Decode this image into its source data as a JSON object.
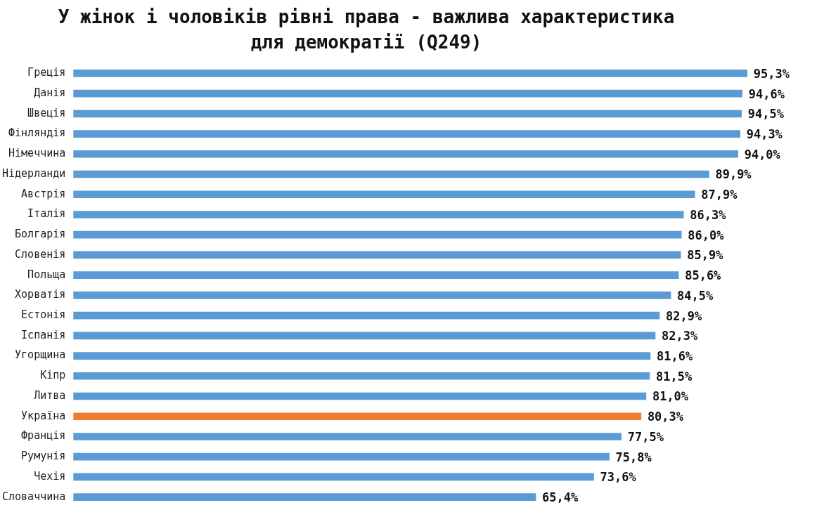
{
  "chart_data": {
    "type": "bar",
    "orientation": "horizontal",
    "title": "У жінок і чоловіків рівні права - важлива характеристика для демократії (Q249)",
    "categories": [
      "Греція",
      "Данія",
      "Швеція",
      "Фінляндія",
      "Німеччина",
      "Нідерланди",
      "Австрія",
      "Італія",
      "Болгарія",
      "Словенія",
      "Польща",
      "Хорватія",
      "Естонія",
      "Іспанія",
      "Угорщина",
      "Кіпр",
      "Литва",
      "Україна",
      "Франція",
      "Румунія",
      "Чехія",
      "Словаччина"
    ],
    "values": [
      95.3,
      94.6,
      94.5,
      94.3,
      94.0,
      89.9,
      87.9,
      86.3,
      86.0,
      85.9,
      85.6,
      84.5,
      82.9,
      82.3,
      81.6,
      81.5,
      81.0,
      80.3,
      77.5,
      75.8,
      73.6,
      65.4
    ],
    "value_labels": [
      "95,3%",
      "94,6%",
      "94,5%",
      "94,3%",
      "94,0%",
      "89,9%",
      "87,9%",
      "86,3%",
      "86,0%",
      "85,9%",
      "85,6%",
      "84,5%",
      "82,9%",
      "82,3%",
      "81,6%",
      "81,5%",
      "81,0%",
      "80,3%",
      "77,5%",
      "75,8%",
      "73,6%",
      "65,4%"
    ],
    "colors": [
      "#5b9bd5",
      "#5b9bd5",
      "#5b9bd5",
      "#5b9bd5",
      "#5b9bd5",
      "#5b9bd5",
      "#5b9bd5",
      "#5b9bd5",
      "#5b9bd5",
      "#5b9bd5",
      "#5b9bd5",
      "#5b9bd5",
      "#5b9bd5",
      "#5b9bd5",
      "#5b9bd5",
      "#5b9bd5",
      "#5b9bd5",
      "#ed7d31",
      "#5b9bd5",
      "#5b9bd5",
      "#5b9bd5",
      "#5b9bd5"
    ],
    "tick_labels": "y",
    "grid": false,
    "legend": false
  }
}
